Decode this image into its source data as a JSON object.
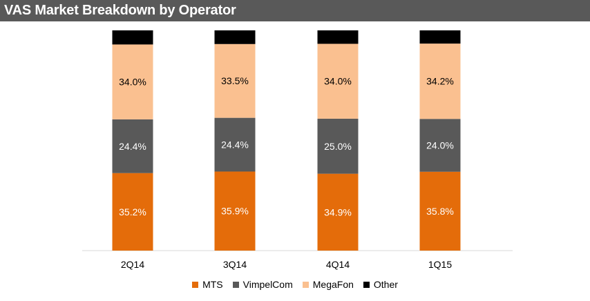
{
  "header": {
    "title": "VAS Market Breakdown by Operator"
  },
  "chart_data": {
    "type": "bar",
    "stacked": true,
    "percent_stacked": true,
    "title": "VAS Market Breakdown by Operator",
    "xlabel": "",
    "ylabel": "",
    "categories": [
      "2Q14",
      "3Q14",
      "4Q14",
      "1Q15"
    ],
    "series": [
      {
        "name": "MTS",
        "values": [
          35.2,
          35.9,
          34.9,
          35.8
        ],
        "labels": [
          "35.2%",
          "35.9%",
          "34.9%",
          "35.8%"
        ],
        "color": "#E46C0A",
        "label_color": "#ffffff"
      },
      {
        "name": "VimpelCom",
        "values": [
          24.4,
          24.4,
          25.0,
          24.0
        ],
        "labels": [
          "24.4%",
          "24.4%",
          "25.0%",
          "24.0%"
        ],
        "color": "#595959",
        "label_color": "#ffffff"
      },
      {
        "name": "MegaFon",
        "values": [
          34.0,
          33.5,
          34.0,
          34.2
        ],
        "labels": [
          "34.0%",
          "33.5%",
          "34.0%",
          "34.2%"
        ],
        "color": "#FAC090",
        "label_color": "#000000"
      },
      {
        "name": "Other",
        "values": [
          6.4,
          6.2,
          6.1,
          6.0
        ],
        "labels": [
          "",
          "",
          "",
          ""
        ],
        "color": "#000000",
        "label_color": "#ffffff"
      }
    ],
    "ylim": [
      0,
      100
    ],
    "grid": false,
    "legend_position": "bottom"
  }
}
